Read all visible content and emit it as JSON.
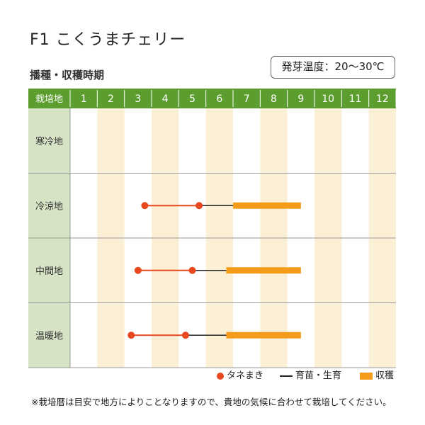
{
  "title": "F1 こくうまチェリー",
  "subtitle": "播種・収穫時期",
  "germination_temp": "発芽温度：20～30℃",
  "chart_data": {
    "type": "gantt",
    "corner_label": "栽培地",
    "months": [
      "1",
      "2",
      "3",
      "4",
      "5",
      "6",
      "7",
      "8",
      "9",
      "10",
      "11",
      "12"
    ],
    "regions": [
      {
        "name": "寒冷地",
        "sowing": [],
        "growing": [],
        "harvest": []
      },
      {
        "name": "冷涼地",
        "sowing": [
          3.75,
          5.75
        ],
        "growing": [
          5.75,
          7.0
        ],
        "harvest": [
          7.0,
          9.5
        ]
      },
      {
        "name": "中間地",
        "sowing": [
          3.5,
          5.5
        ],
        "growing": [
          5.5,
          6.75
        ],
        "harvest": [
          6.75,
          9.5
        ]
      },
      {
        "name": "温暖地",
        "sowing": [
          3.25,
          5.25
        ],
        "growing": [
          5.25,
          6.75
        ],
        "harvest": [
          6.75,
          9.5
        ]
      }
    ],
    "legend": [
      {
        "key": "sowing",
        "label": "タネまき"
      },
      {
        "key": "growing",
        "label": "育苗・生育"
      },
      {
        "key": "harvest",
        "label": "収穫"
      }
    ],
    "colors": {
      "header_bg": "#5c9d2f",
      "header_text": "#ffffff",
      "label_bg": "#d6e3c4",
      "band": "#fbf0d6",
      "sowing": "#e8481e",
      "growing": "#222222",
      "harvest": "#f49b1a",
      "grid": "#999999"
    }
  },
  "note": "※栽培暦は目安で地方によりことなりますので、貴地の気候に合わせて栽培してください。"
}
